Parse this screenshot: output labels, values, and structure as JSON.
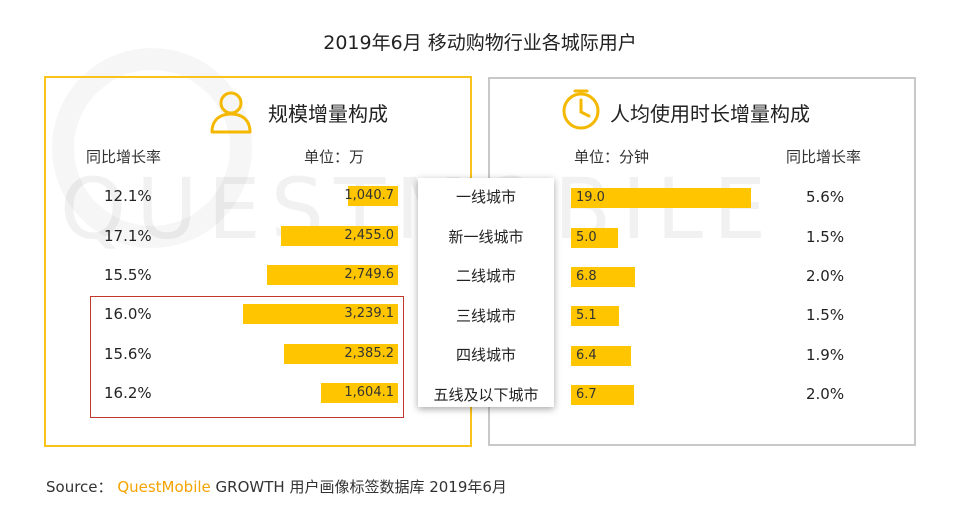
{
  "title": "2019年6月 移动购物行业各城际用户",
  "left_panel": {
    "title": "规模增量构成",
    "rate_header": "同比增长率",
    "unit": "单位：万"
  },
  "right_panel": {
    "title": "人均使用时长增量构成",
    "rate_header": "同比增长率",
    "unit": "单位：分钟"
  },
  "cities": [
    "一线城市",
    "新一线城市",
    "二线城市",
    "三线城市",
    "四线城市",
    "五线及以下城市"
  ],
  "watermark": "QUESTMOBILE",
  "colors": {
    "bar": "#ffc600",
    "left_border": "#f9c319",
    "right_border": "#c8c8c8",
    "highlight": "#c0392b"
  },
  "chart_data": [
    {
      "type": "bar",
      "title": "规模增量构成",
      "unit": "万",
      "orientation": "horizontal-leftward",
      "categories": [
        "一线城市",
        "新一线城市",
        "二线城市",
        "三线城市",
        "四线城市",
        "五线及以下城市"
      ],
      "values": [
        1040.7,
        2455.0,
        2749.6,
        3239.1,
        2385.2,
        1604.1
      ],
      "labels": [
        "1,040.7",
        "2,455.0",
        "2,749.6",
        "3,239.1",
        "2,385.2",
        "1,604.1"
      ],
      "growth_rates": [
        "12.1%",
        "17.1%",
        "15.5%",
        "16.0%",
        "15.6%",
        "16.2%"
      ],
      "highlighted_categories": [
        "三线城市",
        "四线城市",
        "五线及以下城市"
      ]
    },
    {
      "type": "bar",
      "title": "人均使用时长增量构成",
      "unit": "分钟",
      "orientation": "horizontal",
      "categories": [
        "一线城市",
        "新一线城市",
        "二线城市",
        "三线城市",
        "四线城市",
        "五线及以下城市"
      ],
      "values": [
        19.0,
        5.0,
        6.8,
        5.1,
        6.4,
        6.7
      ],
      "labels": [
        "19.0",
        "5.0",
        "6.8",
        "5.1",
        "6.4",
        "6.7"
      ],
      "growth_rates": [
        "5.6%",
        "1.5%",
        "2.0%",
        "1.5%",
        "1.9%",
        "2.0%"
      ]
    }
  ],
  "source": {
    "label": "Source：",
    "brand": "QuestMobile",
    "text": "GROWTH 用户画像标签数据库 2019年6月"
  }
}
